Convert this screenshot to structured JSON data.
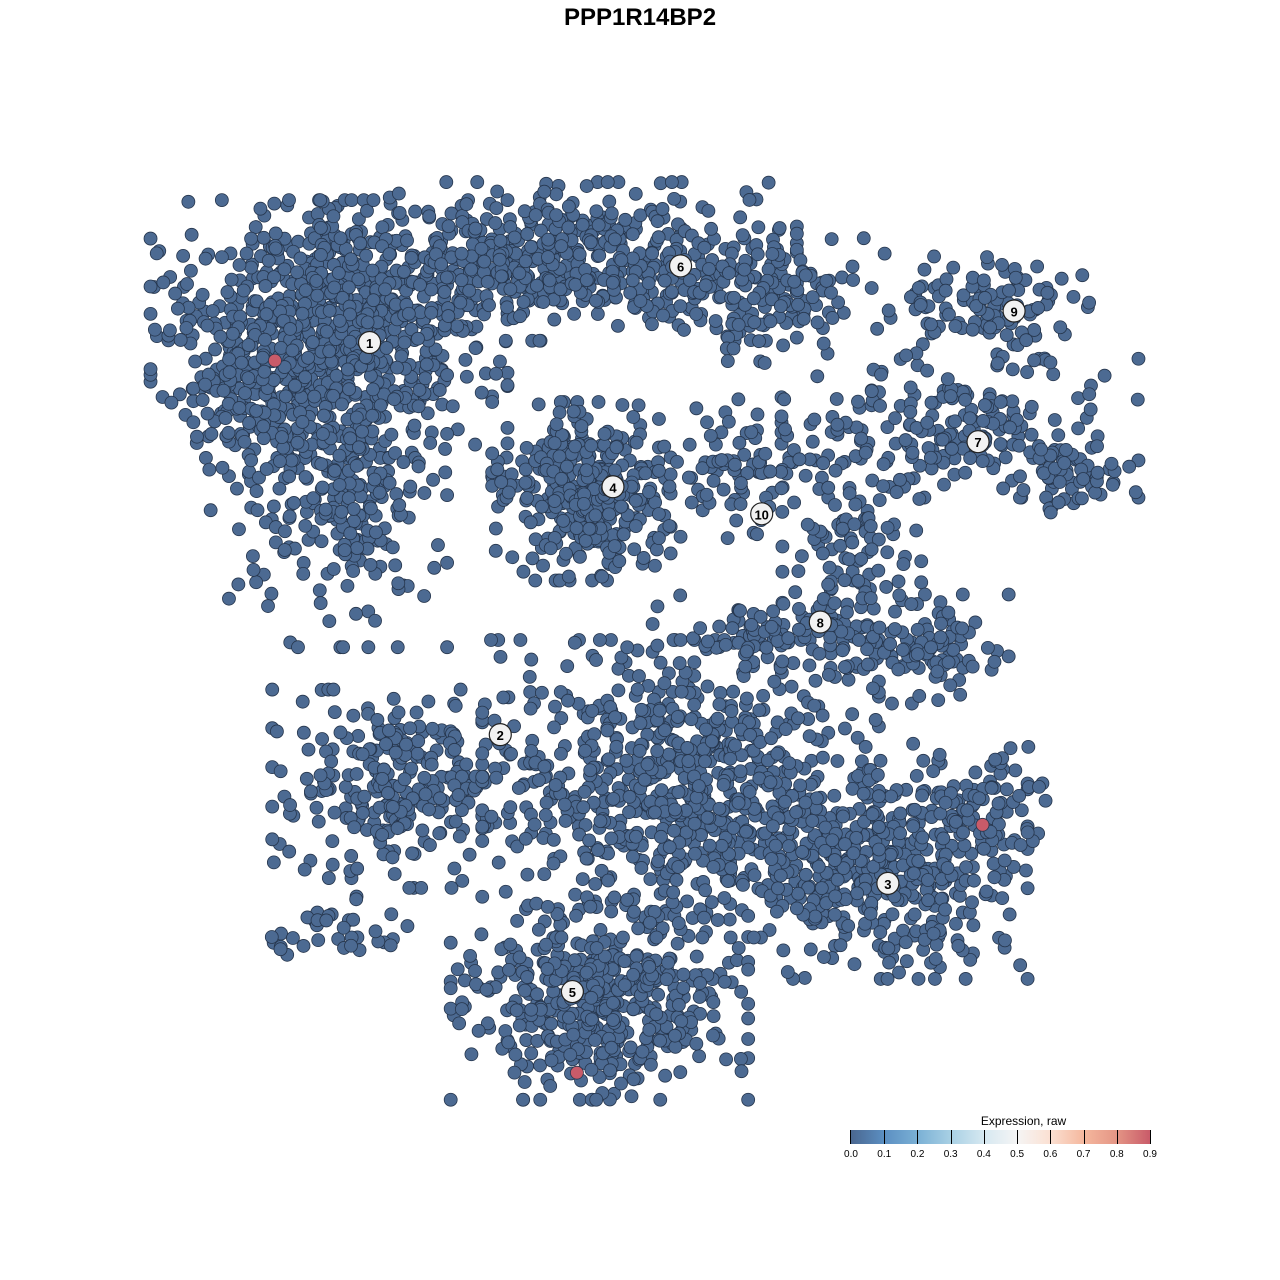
{
  "chart_data": {
    "type": "scatter",
    "title": "PPP1R14BP2",
    "xlabel": "",
    "ylabel": "",
    "xlim": [
      -14.2,
      14.2
    ],
    "ylim": [
      -14.2,
      14.2
    ],
    "grid": false,
    "axes_visible": false,
    "point_color_default": "#4c6a92",
    "clusters": [
      {
        "label": "1",
        "label_pos": [
          -6.0,
          6.6
        ],
        "components": [
          {
            "center": [
              -6.9,
              6.9
            ],
            "sd": [
              1.8,
              1.3
            ],
            "n": 700
          },
          {
            "center": [
              -6.7,
              3.8
            ],
            "sd": [
              1.1,
              1.8
            ],
            "n": 350
          },
          {
            "center": [
              -8.7,
              5.3
            ],
            "sd": [
              0.55,
              1.1
            ],
            "n": 90
          }
        ]
      },
      {
        "label": "2",
        "label_pos": [
          -3.1,
          -2.1
        ],
        "components": [
          {
            "center": [
              -5.3,
              -3.3
            ],
            "sd": [
              1.3,
              1.0
            ],
            "n": 280
          },
          {
            "center": [
              -6.7,
              -6.4
            ],
            "sd": [
              0.7,
              0.35
            ],
            "n": 35
          }
        ]
      },
      {
        "label": "3",
        "label_pos": [
          5.5,
          -5.4
        ],
        "components": [
          {
            "center": [
              5.3,
              -5.1
            ],
            "sd": [
              1.5,
              1.1
            ],
            "n": 420
          },
          {
            "center": [
              7.6,
              -3.8
            ],
            "sd": [
              0.7,
              0.7
            ],
            "n": 90
          }
        ]
      },
      {
        "label": "4",
        "label_pos": [
          -0.6,
          3.4
        ],
        "components": [
          {
            "center": [
              -1.3,
              3.3
            ],
            "sd": [
              0.9,
              0.9
            ],
            "n": 380
          }
        ]
      },
      {
        "label": "5",
        "label_pos": [
          -1.5,
          -7.8
        ],
        "components": [
          {
            "center": [
              -0.9,
              -8.0
            ],
            "sd": [
              1.5,
              1.0
            ],
            "n": 520
          },
          {
            "center": [
              0.9,
              -3.3
            ],
            "sd": [
              2.0,
              1.5
            ],
            "n": 750
          }
        ]
      },
      {
        "label": "6",
        "label_pos": [
          0.9,
          8.3
        ],
        "components": [
          {
            "center": [
              -1.8,
              8.4
            ],
            "sd": [
              2.4,
              0.8
            ],
            "n": 520
          },
          {
            "center": [
              2.7,
              7.6
            ],
            "sd": [
              1.3,
              0.7
            ],
            "n": 160
          }
        ]
      },
      {
        "label": "7",
        "label_pos": [
          7.5,
          4.4
        ],
        "components": [
          {
            "center": [
              7.1,
              4.7
            ],
            "sd": [
              1.8,
              0.7
            ],
            "n": 200
          },
          {
            "center": [
              9.6,
              3.6
            ],
            "sd": [
              0.7,
              0.35
            ],
            "n": 50
          }
        ]
      },
      {
        "label": "8",
        "label_pos": [
          4.0,
          0.4
        ],
        "components": [
          {
            "center": [
              4.7,
              1.8
            ],
            "sd": [
              0.7,
              1.1
            ],
            "n": 110
          },
          {
            "center": [
              6.2,
              -0.2
            ],
            "sd": [
              0.9,
              0.55
            ],
            "n": 110
          },
          {
            "center": [
              2.7,
              0.0
            ],
            "sd": [
              1.1,
              0.45
            ],
            "n": 80
          }
        ]
      },
      {
        "label": "9",
        "label_pos": [
          8.3,
          7.3
        ],
        "components": [
          {
            "center": [
              7.8,
              7.3
            ],
            "sd": [
              1.1,
              0.55
            ],
            "n": 120
          }
        ]
      },
      {
        "label": "10",
        "label_pos": [
          2.7,
          2.8
        ],
        "components": [
          {
            "center": [
              2.4,
              3.8
            ],
            "sd": [
              0.9,
              0.7
            ],
            "n": 90
          }
        ]
      }
    ],
    "highlighted_points": [
      {
        "x": -8.1,
        "y": 6.2,
        "value": 0.9
      },
      {
        "x": 7.6,
        "y": -4.1,
        "value": 0.9
      },
      {
        "x": -1.4,
        "y": -9.6,
        "value": 0.9
      }
    ],
    "colorbar": {
      "title": "Expression, raw",
      "range": [
        0.0,
        0.9
      ],
      "ticks": [
        "0.0",
        "0.1",
        "0.2",
        "0.3",
        "0.4",
        "0.5",
        "0.6",
        "0.7",
        "0.8",
        "0.9"
      ],
      "colors": [
        "#4a6790",
        "#5b8fc2",
        "#7ab0d5",
        "#a8d0e4",
        "#d6e8f1",
        "#f5f5f5",
        "#fbe0d2",
        "#f5b89e",
        "#e49585",
        "#c95b69"
      ],
      "placement": "bottom-right"
    }
  }
}
